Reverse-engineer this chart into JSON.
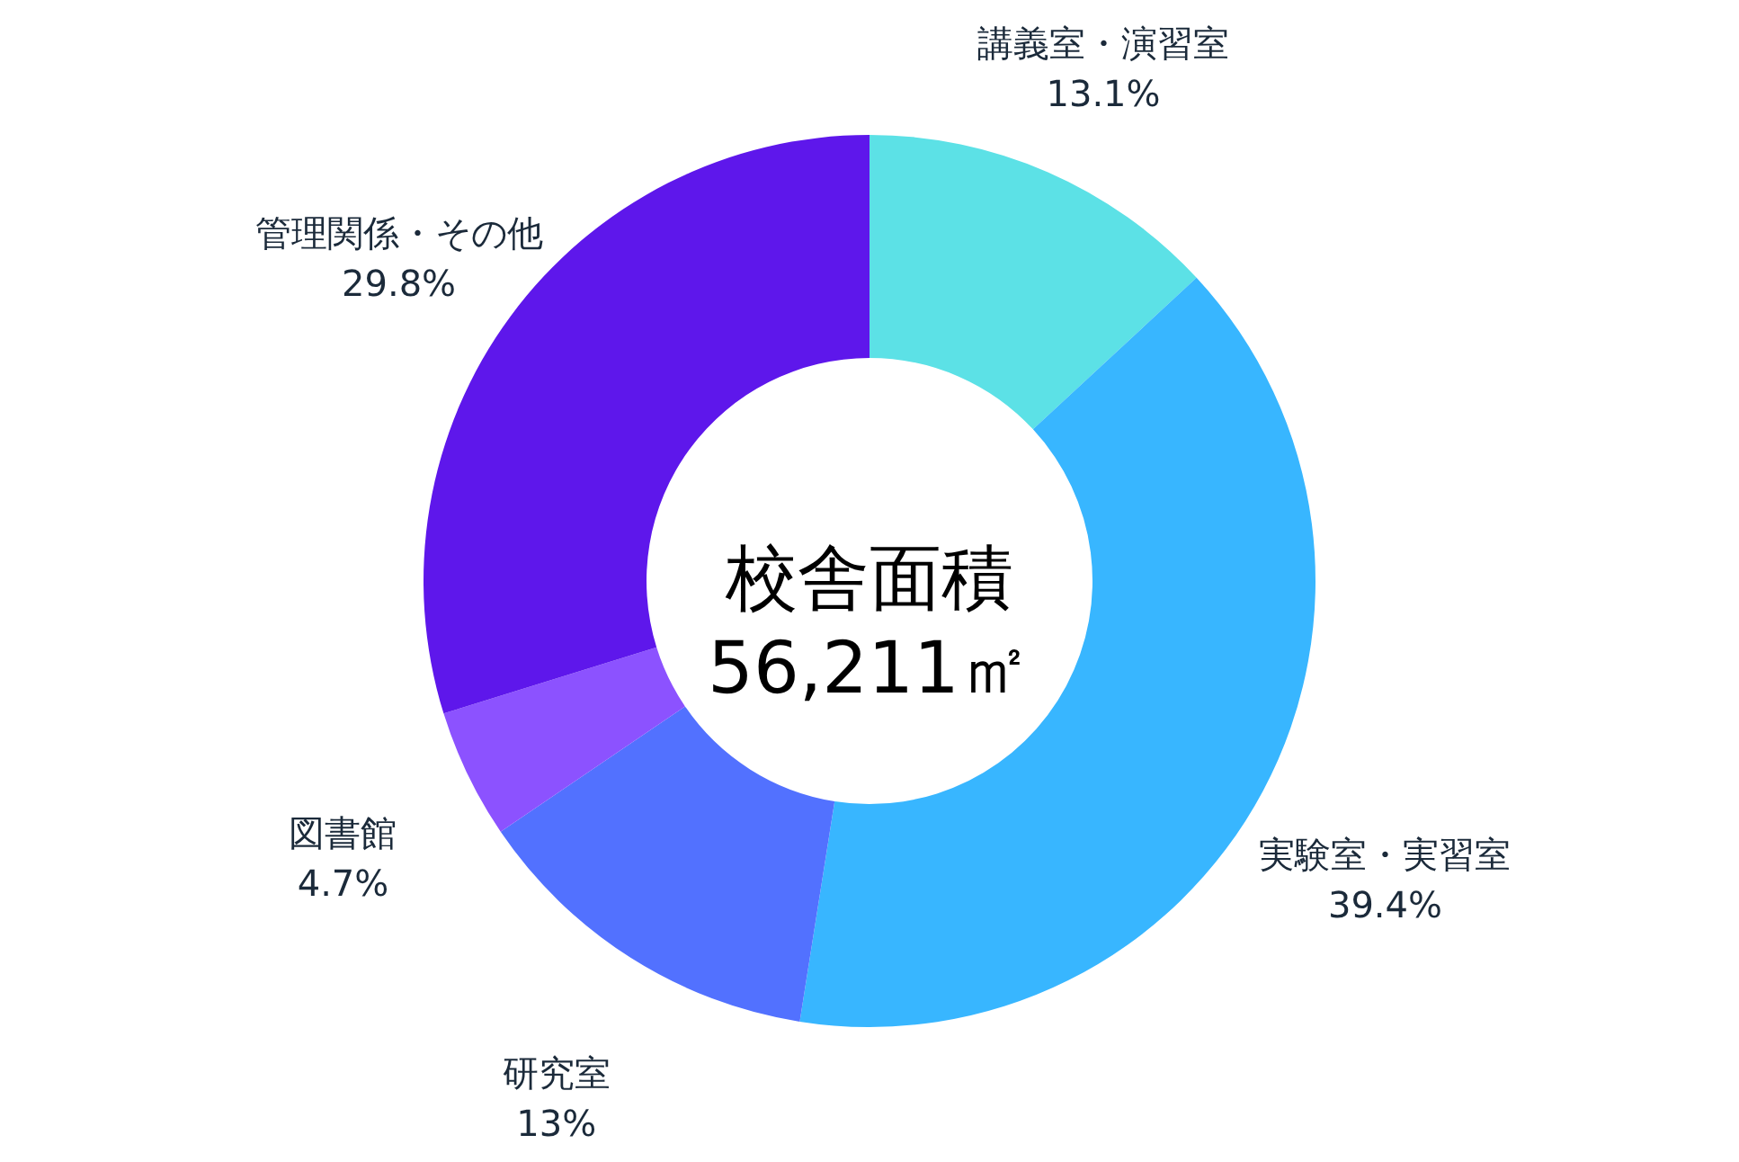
{
  "chart_data": {
    "type": "donut",
    "categories": [
      "講義室・演習室",
      "実験室・実習室",
      "研究室",
      "図書館",
      "管理関係・その他"
    ],
    "values": [
      13.1,
      39.4,
      13,
      4.7,
      29.8
    ],
    "value_labels": [
      "13.1%",
      "39.4%",
      "13%",
      "4.7%",
      "29.8%"
    ],
    "colors": [
      "#5ce1e6",
      "#38b6ff",
      "#5271ff",
      "#8c52ff",
      "#5e17eb"
    ],
    "annotations": [
      "校舎面積",
      "56,211㎡"
    ]
  }
}
